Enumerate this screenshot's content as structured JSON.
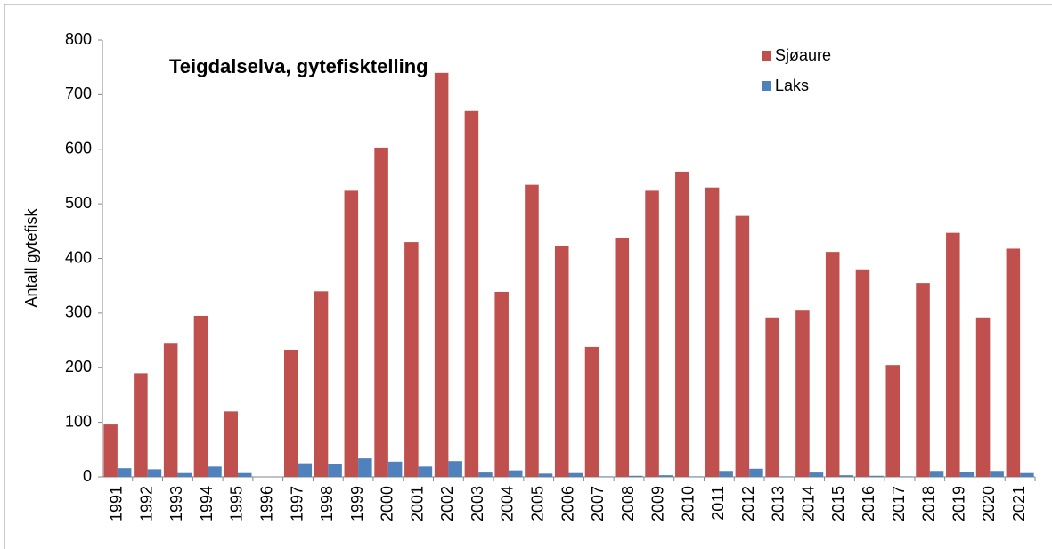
{
  "chart_data": {
    "type": "bar",
    "title": "Teigdalselva, gytefisktelling",
    "y_label": "Antall gytefisk",
    "categories": [
      "1991",
      "1992",
      "1993",
      "1994",
      "1995",
      "1996",
      "1997",
      "1998",
      "1999",
      "2000",
      "2001",
      "2002",
      "2003",
      "2004",
      "2005",
      "2006",
      "2007",
      "2008",
      "2009",
      "2010",
      "2011",
      "2012",
      "2013",
      "2014",
      "2015",
      "2016",
      "2017",
      "2018",
      "2019",
      "2020",
      "2021"
    ],
    "series": [
      {
        "name": "Sjøaure",
        "color": "#c0504d",
        "values": [
          96,
          190,
          244,
          295,
          120,
          0,
          233,
          340,
          524,
          603,
          430,
          740,
          670,
          339,
          535,
          422,
          238,
          437,
          524,
          559,
          530,
          478,
          292,
          306,
          412,
          380,
          205,
          355,
          447,
          292,
          418
        ]
      },
      {
        "name": "Laks",
        "color": "#4f81bd",
        "values": [
          16,
          14,
          7,
          19,
          7,
          0,
          25,
          24,
          34,
          28,
          19,
          29,
          8,
          12,
          6,
          7,
          1,
          2,
          3,
          1,
          11,
          15,
          1,
          8,
          3,
          2,
          1,
          11,
          9,
          11,
          7
        ]
      }
    ],
    "ylim": [
      0,
      800
    ],
    "yticks": [
      0,
      100,
      200,
      300,
      400,
      500,
      600,
      700,
      800
    ],
    "grid": false,
    "legend": "top-right"
  }
}
